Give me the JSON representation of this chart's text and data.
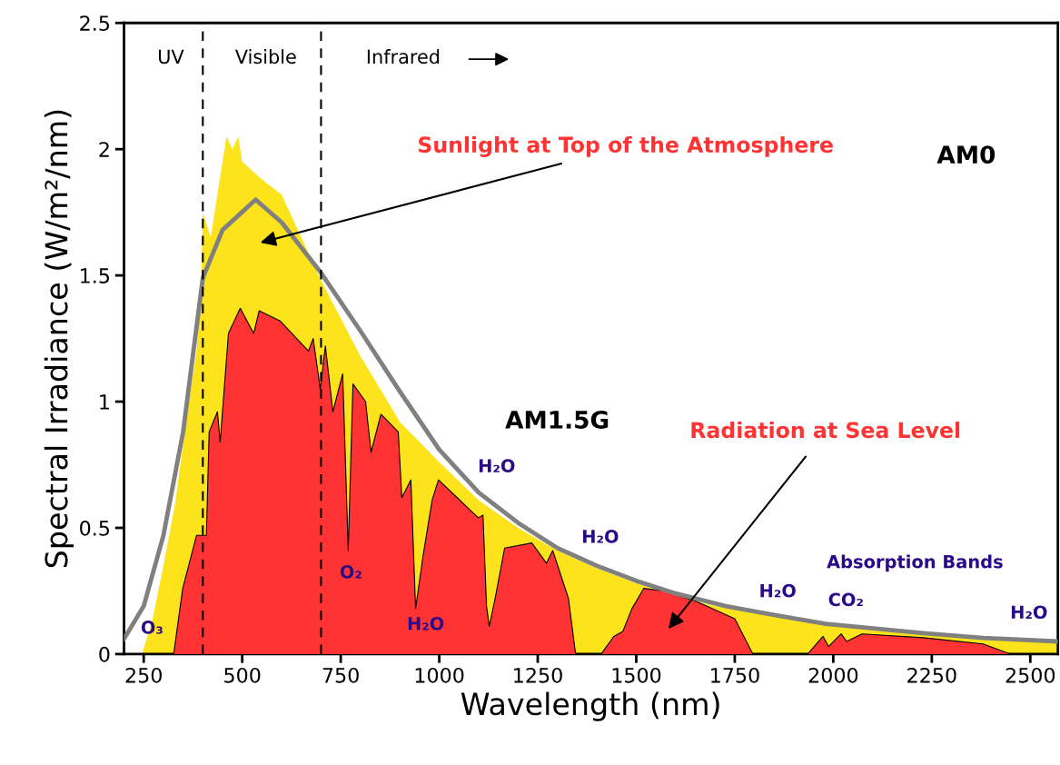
{
  "chart_data": {
    "type": "area",
    "xlabel": "Wavelength (nm)",
    "ylabel": "Spectral Irradiance (W/m²/nm)",
    "xlim": [
      200,
      2570
    ],
    "ylim": [
      0,
      2.5
    ],
    "xticks": [
      250,
      500,
      750,
      1000,
      1250,
      1500,
      1750,
      2000,
      2250,
      2500
    ],
    "yticks": [
      0,
      0.5,
      1,
      1.5,
      2,
      2.5
    ],
    "grid": false,
    "series": [
      {
        "color": "#fde31c",
        "x": [
          245,
          270,
          300,
          330,
          360,
          384,
          395,
          400,
          420,
          440,
          460,
          475,
          490,
          500,
          550,
          600,
          650,
          700,
          800,
          900,
          1000,
          1100,
          1200,
          1300,
          1400,
          1500,
          1600,
          1700,
          1800,
          2000,
          2200,
          2400,
          2570
        ],
        "values": [
          0,
          0.12,
          0.35,
          0.6,
          0.95,
          1.2,
          1.4,
          1.75,
          1.65,
          1.85,
          2.05,
          2.0,
          2.05,
          1.95,
          1.88,
          1.82,
          1.65,
          1.48,
          1.18,
          0.92,
          0.76,
          0.61,
          0.5,
          0.41,
          0.34,
          0.28,
          0.23,
          0.19,
          0.165,
          0.12,
          0.085,
          0.065,
          0.045
        ]
      },
      {
        "color": "#ff3333",
        "x": [
          326,
          349,
          384,
          409,
          416,
          437,
          444,
          465,
          495,
          529,
          543,
          596,
          668,
          680,
          698,
          711,
          730,
          755,
          769,
          781,
          813,
          827,
          852,
          896,
          905,
          928,
          940,
          958,
          982,
          998,
          1099,
          1111,
          1120,
          1127,
          1143,
          1166,
          1235,
          1272,
          1288,
          1328,
          1346,
          1411,
          1443,
          1466,
          1489,
          1519,
          1572,
          1650,
          1750,
          1796,
          1935,
          1974,
          1988,
          2020,
          2034,
          2073,
          2228,
          2380,
          2450,
          2570
        ],
        "values": [
          0,
          0.26,
          0.47,
          0.47,
          0.88,
          0.96,
          0.84,
          1.27,
          1.37,
          1.27,
          1.36,
          1.32,
          1.2,
          1.25,
          1.05,
          1.22,
          0.96,
          1.11,
          0.41,
          1.07,
          1.0,
          0.8,
          0.95,
          0.88,
          0.62,
          0.69,
          0.18,
          0.38,
          0.61,
          0.69,
          0.54,
          0.55,
          0.19,
          0.11,
          0.23,
          0.42,
          0.44,
          0.36,
          0.41,
          0.22,
          0,
          0,
          0.07,
          0.09,
          0.18,
          0.26,
          0.25,
          0.21,
          0.14,
          0,
          0,
          0.07,
          0.03,
          0.08,
          0.05,
          0.08,
          0.065,
          0.04,
          0,
          0
        ]
      },
      {
        "type": "line",
        "color": "#808080",
        "x": [
          200,
          250,
          300,
          350,
          400,
          450,
          534,
          600,
          700,
          800,
          900,
          1000,
          1100,
          1200,
          1300,
          1400,
          1500,
          1600,
          1727,
          1850,
          1981,
          2228,
          2380,
          2570
        ],
        "values": [
          0.06,
          0.19,
          0.47,
          0.88,
          1.49,
          1.68,
          1.8,
          1.71,
          1.51,
          1.28,
          1.04,
          0.81,
          0.64,
          0.52,
          0.42,
          0.35,
          0.29,
          0.24,
          0.19,
          0.155,
          0.12,
          0.083,
          0.064,
          0.05
        ]
      }
    ],
    "ref_lines": [
      {
        "axis": "x",
        "value": 400,
        "color": "#000000",
        "line_style": "dashed"
      },
      {
        "axis": "x",
        "value": 700,
        "color": "#000000",
        "line_style": "dashed"
      }
    ],
    "annotations": [
      "UV",
      "Visible",
      "Infrared",
      "Sunlight at Top of the Atmosphere",
      "Radiation at Sea Level",
      "O₃",
      "O₂",
      "H₂O",
      "H₂O",
      "H₂O",
      "H₂O",
      "CO₂",
      "Absorption Bands",
      "H₂O",
      "AM0",
      "AM1.5G"
    ]
  }
}
